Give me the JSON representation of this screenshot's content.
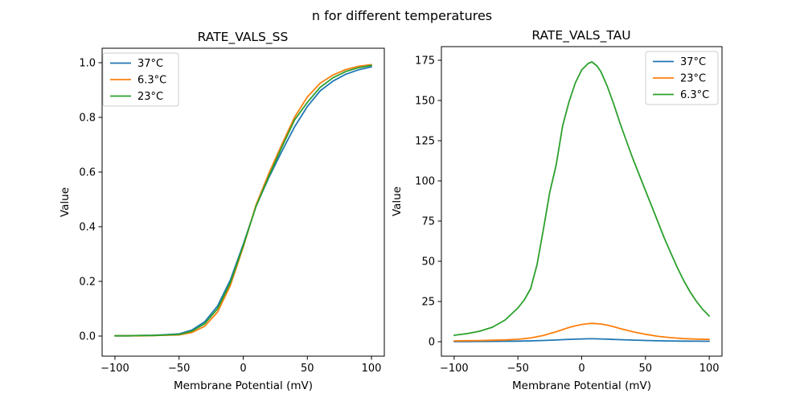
{
  "figure": {
    "suptitle": "n for different temperatures",
    "background": "#ffffff",
    "text_color": "#000000",
    "frame_color": "#000000",
    "legend_border_color": "#cccccc"
  },
  "chart_data": [
    {
      "type": "line",
      "title": "RATE_VALS_SS",
      "xlabel": "Membrane Potential (mV)",
      "ylabel": "Value",
      "grid": false,
      "xlim": [
        -110,
        110
      ],
      "ylim": [
        -0.0735,
        1.0529
      ],
      "xtick_vals": [
        -100,
        -50,
        0,
        50,
        100
      ],
      "xtick_labels": [
        "−100",
        "−50",
        "0",
        "50",
        "100"
      ],
      "ytick_vals": [
        0.0,
        0.2,
        0.4,
        0.6,
        0.8,
        1.0
      ],
      "ytick_labels": [
        "0.0",
        "0.2",
        "0.4",
        "0.6",
        "0.8",
        "1.0"
      ],
      "legend": {
        "position": "upper-left",
        "entries": [
          "37°C",
          "6.3°C",
          "23°C"
        ]
      },
      "series": [
        {
          "name": "37°C",
          "color": "#1f77b4",
          "x": [
            -100,
            -90,
            -80,
            -70,
            -60,
            -50,
            -40,
            -30,
            -20,
            -10,
            0,
            10,
            20,
            30,
            40,
            50,
            60,
            70,
            80,
            90,
            100
          ],
          "y": [
            0.001,
            0.001,
            0.002,
            0.003,
            0.005,
            0.008,
            0.022,
            0.052,
            0.11,
            0.205,
            0.335,
            0.475,
            0.58,
            0.675,
            0.765,
            0.84,
            0.897,
            0.933,
            0.958,
            0.974,
            0.985
          ]
        },
        {
          "name": "6.3°C",
          "color": "#ff7f0e",
          "x": [
            -100,
            -90,
            -80,
            -70,
            -60,
            -50,
            -40,
            -30,
            -20,
            -10,
            0,
            10,
            20,
            30,
            40,
            50,
            60,
            70,
            80,
            90,
            100
          ],
          "y": [
            0.001,
            0.001,
            0.001,
            0.002,
            0.003,
            0.004,
            0.013,
            0.036,
            0.088,
            0.185,
            0.325,
            0.48,
            0.595,
            0.7,
            0.8,
            0.875,
            0.925,
            0.955,
            0.975,
            0.987,
            0.993
          ]
        },
        {
          "name": "23°C",
          "color": "#2ca02c",
          "x": [
            -100,
            -90,
            -80,
            -70,
            -60,
            -50,
            -40,
            -30,
            -20,
            -10,
            0,
            10,
            20,
            30,
            40,
            50,
            60,
            70,
            80,
            90,
            100
          ],
          "y": [
            0.001,
            0.001,
            0.002,
            0.002,
            0.004,
            0.006,
            0.018,
            0.045,
            0.1,
            0.195,
            0.33,
            0.475,
            0.585,
            0.69,
            0.79,
            0.855,
            0.91,
            0.945,
            0.968,
            0.982,
            0.99
          ]
        }
      ]
    },
    {
      "type": "line",
      "title": "RATE_VALS_TAU",
      "xlabel": "Membrane Potential (mV)",
      "ylabel": "Value",
      "grid": false,
      "xlim": [
        -110,
        110
      ],
      "ylim": [
        -9,
        183.5
      ],
      "xtick_vals": [
        -100,
        -50,
        0,
        50,
        100
      ],
      "xtick_labels": [
        "−100",
        "−50",
        "0",
        "50",
        "100"
      ],
      "ytick_vals": [
        0,
        25,
        50,
        75,
        100,
        125,
        150,
        175
      ],
      "ytick_labels": [
        "0",
        "25",
        "50",
        "75",
        "100",
        "125",
        "150",
        "175"
      ],
      "legend": {
        "position": "upper-right",
        "entries": [
          "37°C",
          "23°C",
          "6.3°C"
        ]
      },
      "series": [
        {
          "name": "37°C",
          "color": "#1f77b4",
          "x": [
            -100,
            -90,
            -80,
            -70,
            -60,
            -50,
            -40,
            -30,
            -20,
            -10,
            0,
            5,
            10,
            20,
            30,
            40,
            50,
            60,
            70,
            80,
            90,
            100
          ],
          "y": [
            0.1,
            0.12,
            0.15,
            0.2,
            0.25,
            0.35,
            0.5,
            0.75,
            1.05,
            1.45,
            1.7,
            1.8,
            1.8,
            1.55,
            1.25,
            1.0,
            0.75,
            0.55,
            0.45,
            0.35,
            0.3,
            0.25
          ]
        },
        {
          "name": "23°C",
          "color": "#ff7f0e",
          "x": [
            -100,
            -90,
            -80,
            -70,
            -60,
            -50,
            -40,
            -30,
            -20,
            -10,
            -5,
            0,
            5,
            8,
            15,
            20,
            25,
            30,
            40,
            50,
            60,
            70,
            80,
            90,
            100
          ],
          "y": [
            0.5,
            0.6,
            0.7,
            0.9,
            1.1,
            1.5,
            2.3,
            3.9,
            6.2,
            8.8,
            9.9,
            10.7,
            11.2,
            11.4,
            11.0,
            10.3,
            9.3,
            8.2,
            6.2,
            4.6,
            3.3,
            2.5,
            1.9,
            1.6,
            1.4
          ]
        },
        {
          "name": "6.3°C",
          "color": "#2ca02c",
          "x": [
            -100,
            -90,
            -80,
            -70,
            -60,
            -50,
            -45,
            -40,
            -35,
            -30,
            -25,
            -20,
            -15,
            -10,
            -5,
            0,
            5,
            8,
            12,
            15,
            20,
            25,
            30,
            35,
            40,
            45,
            50,
            55,
            60,
            65,
            70,
            75,
            80,
            85,
            90,
            95,
            100
          ],
          "y": [
            4,
            5,
            6.5,
            9,
            13.5,
            21,
            26,
            33,
            48,
            70,
            93,
            110,
            134,
            149,
            161,
            169,
            173,
            174,
            171.5,
            168,
            159,
            148,
            136,
            125,
            114,
            104,
            94,
            84,
            74,
            64,
            55,
            46,
            38,
            31,
            25,
            20,
            16
          ]
        }
      ]
    }
  ]
}
